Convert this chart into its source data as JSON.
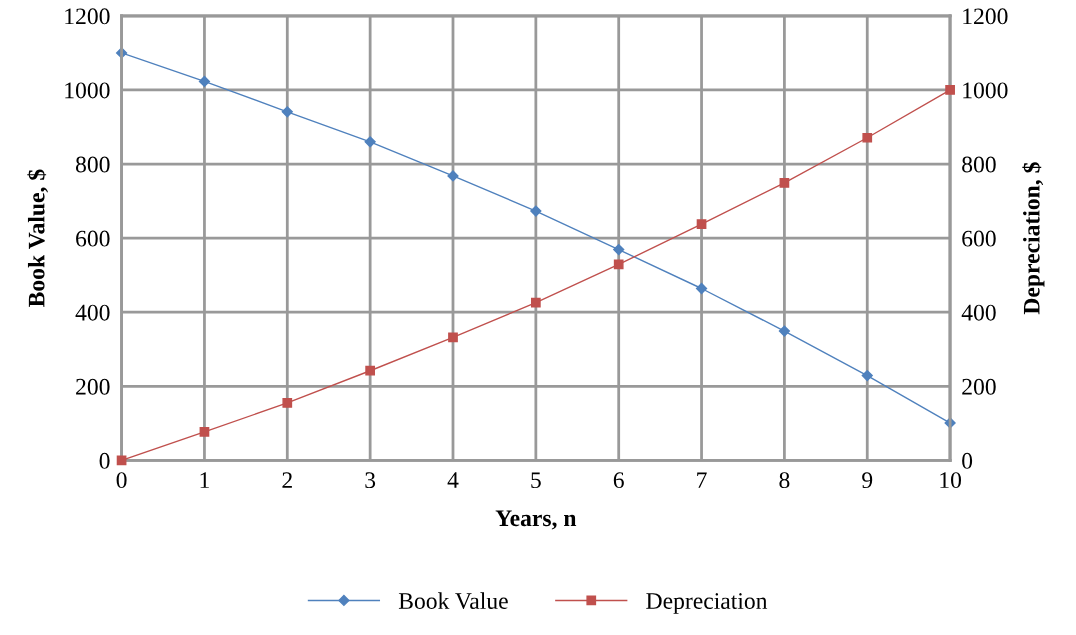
{
  "chart_data": {
    "type": "line",
    "x": [
      0,
      1,
      2,
      3,
      4,
      5,
      6,
      7,
      8,
      9,
      10
    ],
    "xlabel": "Years, n",
    "ylabel": "Book Value, $",
    "y2label": "Depreciation, $",
    "xlim": [
      0,
      10
    ],
    "xticks": [
      0,
      1,
      2,
      3,
      4,
      5,
      6,
      7,
      8,
      9,
      10
    ],
    "ylim": [
      0,
      1200
    ],
    "yticks": [
      0,
      200,
      400,
      600,
      800,
      1000,
      1200
    ],
    "y2lim": [
      0,
      1200
    ],
    "y2ticks": [
      0,
      200,
      400,
      600,
      800,
      1000,
      1200
    ],
    "grid": true,
    "legend": "bottom",
    "line_style": "solid",
    "series": [
      {
        "name": "Book Value",
        "color": "#4f81bd",
        "marker": "diamond",
        "values": [
          1100,
          1023,
          941,
          860,
          768,
          673,
          569,
          464,
          349,
          229,
          101
        ]
      },
      {
        "name": "Depreciation",
        "color": "#c0504d",
        "marker": "square",
        "axis": "y2",
        "values": [
          0,
          77,
          155,
          242,
          332,
          426,
          529,
          638,
          749,
          871,
          1000
        ]
      }
    ]
  }
}
